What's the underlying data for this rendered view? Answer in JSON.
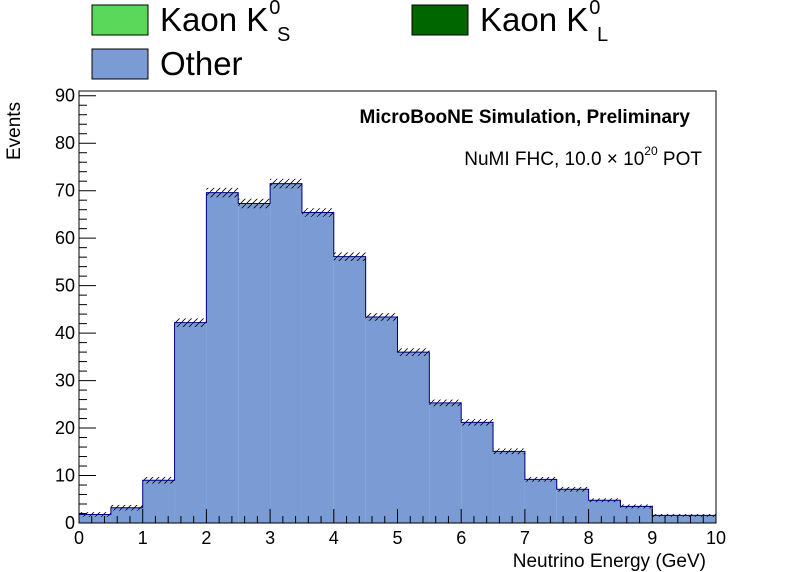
{
  "chart_data": {
    "type": "bar",
    "title": "",
    "xlabel": "Neutrino Energy (GeV)",
    "ylabel": "Events",
    "xlim": [
      0,
      10
    ],
    "ylim": [
      0,
      91
    ],
    "x_ticks": [
      0,
      1,
      2,
      3,
      4,
      5,
      6,
      7,
      8,
      9,
      10
    ],
    "y_ticks": [
      0,
      10,
      20,
      30,
      40,
      50,
      60,
      70,
      80,
      90
    ],
    "bin_edges": [
      0,
      0.5,
      1,
      1.5,
      2,
      2.5,
      3,
      3.5,
      4,
      4.5,
      5,
      5.5,
      6,
      6.5,
      7,
      7.5,
      8,
      8.5,
      9,
      9.5,
      10
    ],
    "legend": {
      "placement": "top",
      "entries": [
        {
          "label": "Kaon K",
          "superscript": "0",
          "subscript": "S",
          "color": "#5ad85a"
        },
        {
          "label": "Kaon K",
          "superscript": "0",
          "subscript": "L",
          "color": "#006600"
        },
        {
          "label": "Other",
          "superscript": "",
          "subscript": "",
          "color": "#7b9bd4"
        }
      ]
    },
    "series": [
      {
        "name": "Other",
        "color": "#7b9bd4",
        "values": [
          1.8,
          3.2,
          9.0,
          42.2,
          69.6,
          67.3,
          71.5,
          65.4,
          56.1,
          43.4,
          36.0,
          25.3,
          21.2,
          15.1,
          9.2,
          7.1,
          4.8,
          3.5,
          1.6,
          1.6
        ]
      },
      {
        "name": "Kaon K0S",
        "color": "#5ad85a",
        "values": [
          0,
          0,
          0,
          0,
          0,
          0,
          0,
          0,
          0,
          0,
          0,
          0,
          0,
          0,
          0,
          0,
          0,
          0,
          0,
          0
        ]
      },
      {
        "name": "Kaon K0L",
        "color": "#006600",
        "values": [
          0,
          0,
          0,
          0,
          0,
          0,
          0,
          0,
          0,
          0,
          0,
          0,
          0,
          0,
          0,
          0,
          0,
          0,
          0,
          0
        ]
      }
    ],
    "uncertainty": [
      0.5,
      0.6,
      0.7,
      0.9,
      1.0,
      1.0,
      1.0,
      0.9,
      0.9,
      0.8,
      0.8,
      0.7,
      0.7,
      0.6,
      0.5,
      0.5,
      0.4,
      0.4,
      0.3,
      0.3
    ],
    "annotations": {
      "label": "MicroBooNE Simulation, Preliminary",
      "pot_prefix": "NuMI FHC, 10.0  × 10",
      "pot_exponent": "20",
      "pot_suffix": " POT"
    }
  }
}
